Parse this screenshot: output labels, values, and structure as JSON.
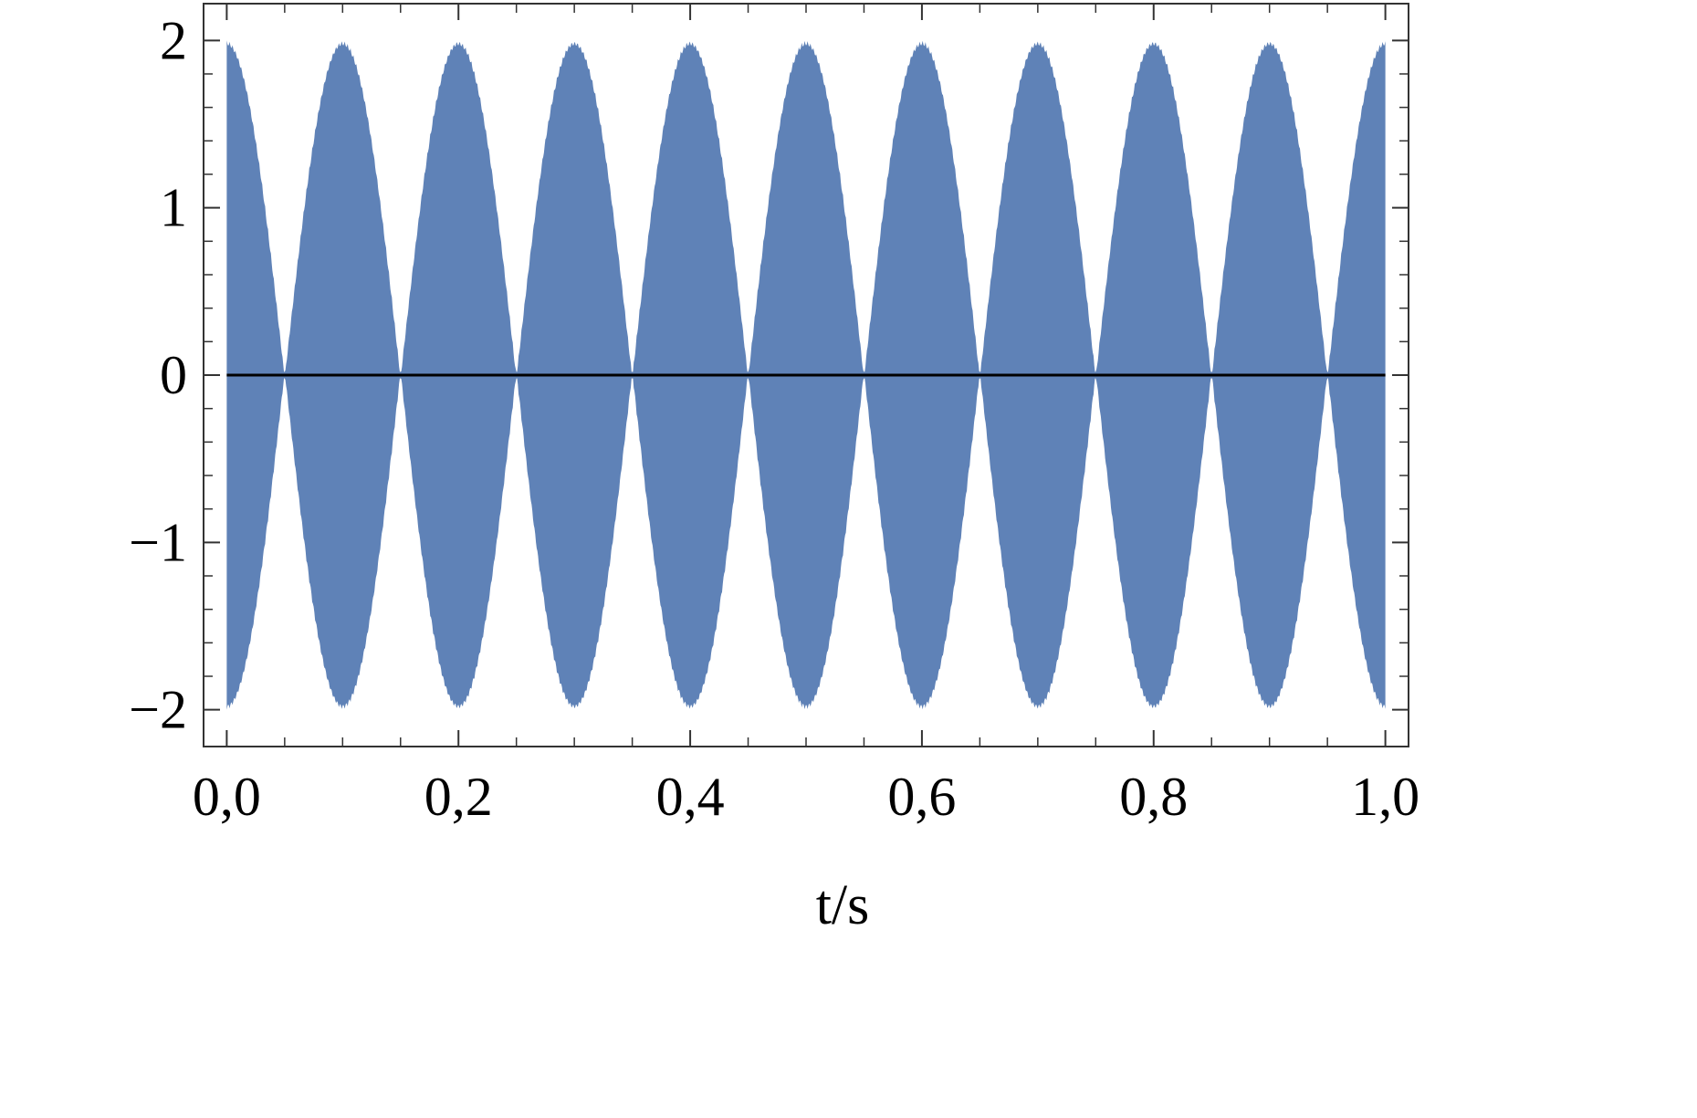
{
  "chart_data": {
    "type": "area",
    "title": "",
    "xlabel": "t/s",
    "ylabel": "",
    "xlim": [
      -0.02,
      1.02
    ],
    "ylim": [
      -2.22,
      2.22
    ],
    "x_ticks": [
      0.0,
      0.2,
      0.4,
      0.6,
      0.8,
      1.0
    ],
    "x_tick_labels": [
      "0,0",
      "0,2",
      "0,4",
      "0,6",
      "0,8",
      "1,0"
    ],
    "y_ticks": [
      -2,
      -1,
      0,
      1,
      2
    ],
    "y_tick_labels": [
      "−2",
      "−1",
      "0",
      "1",
      "2"
    ],
    "grid": false,
    "baseline_y": 0,
    "series": [
      {
        "color": "#5f82b7",
        "description_envelope": "amplitude = |2 cos(2π·5·t)|",
        "envelope_frequency_hz": 5,
        "envelope_peak": 2,
        "x_start": 0.0,
        "x_end": 1.0
      }
    ],
    "colors": {
      "fill": "#5f82b7",
      "axis": "#000000",
      "baseline": "#000000"
    }
  }
}
